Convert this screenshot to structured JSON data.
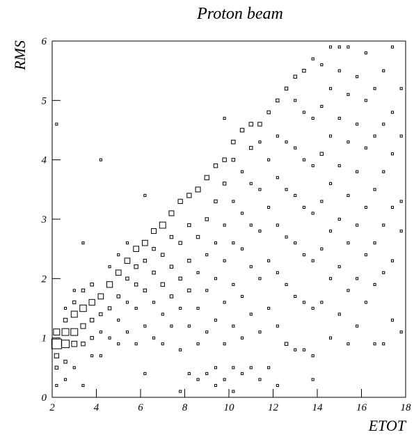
{
  "chart_data": {
    "type": "box2d",
    "title": "Proton beam",
    "x_label": "ETOT",
    "y_label": "RMS",
    "xlim": [
      2,
      18
    ],
    "ylim": [
      0,
      6
    ],
    "xticks": [
      2,
      4,
      6,
      8,
      10,
      12,
      14,
      16,
      18
    ],
    "yticks": [
      0,
      1,
      2,
      3,
      4,
      5,
      6
    ],
    "color": "#000000",
    "columns": [
      {
        "x": 2.2,
        "y": [
          0.2,
          0.5,
          0.7,
          0.9,
          1.1,
          4.6
        ],
        "counts": [
          1,
          2,
          4,
          20,
          8,
          1
        ]
      },
      {
        "x": 2.6,
        "y": [
          0.3,
          0.6,
          0.9,
          1.1,
          1.3,
          1.5
        ],
        "counts": [
          1,
          2,
          12,
          10,
          3,
          1
        ]
      },
      {
        "x": 3.0,
        "y": [
          0.5,
          0.9,
          1.1,
          1.4,
          1.6,
          1.8
        ],
        "counts": [
          1,
          6,
          10,
          8,
          2,
          1
        ]
      },
      {
        "x": 3.4,
        "y": [
          0.2,
          0.9,
          1.2,
          1.5,
          1.8,
          2.6
        ],
        "counts": [
          1,
          3,
          5,
          9,
          2,
          1
        ]
      },
      {
        "x": 3.8,
        "y": [
          0.7,
          1.0,
          1.3,
          1.6,
          1.9
        ],
        "counts": [
          1,
          2,
          3,
          7,
          2
        ]
      },
      {
        "x": 4.2,
        "y": [
          0.7,
          1.1,
          1.4,
          1.7,
          4.0
        ],
        "counts": [
          1,
          1,
          2,
          6,
          1
        ]
      },
      {
        "x": 4.6,
        "y": [
          1.0,
          1.5,
          1.9,
          2.2
        ],
        "counts": [
          1,
          2,
          7,
          1
        ]
      },
      {
        "x": 5.0,
        "y": [
          0.9,
          1.3,
          1.7,
          2.1,
          2.4
        ],
        "counts": [
          1,
          1,
          2,
          6,
          1
        ]
      },
      {
        "x": 5.4,
        "y": [
          1.1,
          1.6,
          2.0,
          2.3,
          2.6
        ],
        "counts": [
          1,
          1,
          2,
          6,
          1
        ]
      },
      {
        "x": 5.8,
        "y": [
          0.9,
          1.5,
          1.9,
          2.2,
          2.5
        ],
        "counts": [
          1,
          1,
          2,
          3,
          6
        ]
      },
      {
        "x": 6.2,
        "y": [
          0.4,
          1.2,
          1.8,
          2.3,
          2.6,
          3.4
        ],
        "counts": [
          1,
          1,
          2,
          2,
          6,
          1
        ]
      },
      {
        "x": 6.6,
        "y": [
          1.0,
          1.6,
          2.1,
          2.5,
          2.8
        ],
        "counts": [
          1,
          1,
          2,
          2,
          5
        ]
      },
      {
        "x": 7.0,
        "y": [
          0.9,
          1.4,
          1.9,
          2.4,
          2.9
        ],
        "counts": [
          1,
          1,
          3,
          2,
          8
        ]
      },
      {
        "x": 7.4,
        "y": [
          1.2,
          1.7,
          2.2,
          2.7,
          3.1
        ],
        "counts": [
          1,
          2,
          2,
          2,
          5
        ]
      },
      {
        "x": 7.8,
        "y": [
          0.1,
          0.8,
          1.5,
          2.0,
          2.6,
          3.3
        ],
        "counts": [
          1,
          1,
          1,
          2,
          2,
          4
        ]
      },
      {
        "x": 8.2,
        "y": [
          0.4,
          1.2,
          1.8,
          2.3,
          2.9,
          3.4
        ],
        "counts": [
          1,
          1,
          2,
          2,
          2,
          4
        ]
      },
      {
        "x": 8.6,
        "y": [
          0.3,
          0.9,
          1.5,
          2.1,
          2.7,
          3.5
        ],
        "counts": [
          1,
          1,
          1,
          1,
          2,
          5
        ]
      },
      {
        "x": 9.0,
        "y": [
          0.4,
          1.1,
          1.8,
          2.4,
          3.0,
          3.7
        ],
        "counts": [
          1,
          1,
          1,
          1,
          2,
          4
        ]
      },
      {
        "x": 9.4,
        "y": [
          0.2,
          0.5,
          1.3,
          2.0,
          2.6,
          3.3,
          3.9
        ],
        "counts": [
          1,
          1,
          1,
          1,
          1,
          2,
          3
        ]
      },
      {
        "x": 9.8,
        "y": [
          0.3,
          0.9,
          1.6,
          2.3,
          2.9,
          3.6,
          4.0,
          4.7
        ],
        "counts": [
          1,
          1,
          1,
          1,
          1,
          2,
          3,
          1
        ]
      },
      {
        "x": 10.2,
        "y": [
          0.1,
          0.5,
          1.2,
          1.9,
          2.6,
          3.3,
          4.0,
          4.3
        ],
        "counts": [
          1,
          1,
          1,
          1,
          1,
          1,
          2,
          3
        ]
      },
      {
        "x": 10.6,
        "y": [
          0.4,
          1.0,
          1.7,
          2.5,
          3.1,
          3.8,
          4.5
        ],
        "counts": [
          1,
          1,
          1,
          1,
          1,
          1,
          3
        ]
      },
      {
        "x": 11.0,
        "y": [
          0.5,
          1.4,
          2.2,
          2.9,
          3.6,
          4.2,
          4.6
        ],
        "counts": [
          1,
          1,
          1,
          1,
          1,
          2,
          3
        ]
      },
      {
        "x": 11.4,
        "y": [
          0.3,
          1.1,
          2.0,
          2.8,
          3.5,
          4.3,
          4.6
        ],
        "counts": [
          1,
          1,
          1,
          1,
          1,
          1,
          3
        ]
      },
      {
        "x": 11.8,
        "y": [
          0.5,
          1.5,
          2.3,
          3.2,
          4.0,
          4.8
        ],
        "counts": [
          1,
          1,
          1,
          1,
          1,
          2
        ]
      },
      {
        "x": 12.2,
        "y": [
          0.2,
          1.2,
          2.1,
          2.9,
          3.7,
          4.4,
          5.0
        ],
        "counts": [
          1,
          1,
          1,
          1,
          1,
          1,
          2
        ]
      },
      {
        "x": 12.6,
        "y": [
          0.9,
          1.9,
          2.7,
          3.5,
          4.3,
          5.2
        ],
        "counts": [
          2,
          1,
          1,
          1,
          1,
          2
        ]
      },
      {
        "x": 13.0,
        "y": [
          0.8,
          1.7,
          2.6,
          3.4,
          4.2,
          5.0,
          5.4
        ],
        "counts": [
          1,
          1,
          1,
          1,
          1,
          1,
          2
        ]
      },
      {
        "x": 13.4,
        "y": [
          0.8,
          1.6,
          2.4,
          3.2,
          4.0,
          4.8,
          5.5
        ],
        "counts": [
          1,
          1,
          1,
          1,
          1,
          1,
          2
        ]
      },
      {
        "x": 13.8,
        "y": [
          0.3,
          0.7,
          1.5,
          2.3,
          3.1,
          3.9,
          4.7,
          5.7
        ],
        "counts": [
          1,
          1,
          1,
          1,
          1,
          1,
          1,
          1
        ]
      },
      {
        "x": 14.2,
        "y": [
          1.6,
          2.5,
          3.3,
          4.1,
          4.9,
          5.6
        ],
        "counts": [
          1,
          1,
          1,
          2,
          1,
          1
        ]
      },
      {
        "x": 14.6,
        "y": [
          1.0,
          2.0,
          2.8,
          3.6,
          4.4,
          5.2,
          5.9
        ],
        "counts": [
          1,
          1,
          1,
          1,
          1,
          1,
          1
        ]
      },
      {
        "x": 15.0,
        "y": [
          1.4,
          2.2,
          3.0,
          3.9,
          4.7,
          5.5,
          5.9
        ],
        "counts": [
          1,
          1,
          1,
          1,
          1,
          1,
          1
        ]
      },
      {
        "x": 15.4,
        "y": [
          0.9,
          1.8,
          2.6,
          3.4,
          4.3,
          5.1,
          5.9
        ],
        "counts": [
          1,
          1,
          1,
          1,
          1,
          1,
          1
        ]
      },
      {
        "x": 15.8,
        "y": [
          1.2,
          2.0,
          2.9,
          3.8,
          4.6,
          5.4
        ],
        "counts": [
          1,
          1,
          1,
          1,
          1,
          1
        ]
      },
      {
        "x": 16.2,
        "y": [
          1.6,
          2.4,
          3.2,
          4.2,
          5.0,
          5.8
        ],
        "counts": [
          1,
          1,
          1,
          1,
          1,
          1
        ]
      },
      {
        "x": 16.6,
        "y": [
          0.9,
          1.9,
          2.6,
          3.5,
          4.4,
          5.2
        ],
        "counts": [
          1,
          1,
          1,
          1,
          1,
          1
        ]
      },
      {
        "x": 17.0,
        "y": [
          0.9,
          2.1,
          2.9,
          3.8,
          4.6,
          5.5
        ],
        "counts": [
          1,
          1,
          1,
          1,
          1,
          1
        ]
      },
      {
        "x": 17.4,
        "y": [
          1.3,
          2.3,
          3.2,
          4.1,
          4.8,
          5.9
        ],
        "counts": [
          1,
          1,
          1,
          1,
          1,
          1
        ]
      },
      {
        "x": 17.8,
        "y": [
          1.1,
          2.8,
          3.3,
          4.4,
          5.2
        ],
        "counts": [
          1,
          1,
          1,
          1,
          1
        ]
      }
    ]
  }
}
